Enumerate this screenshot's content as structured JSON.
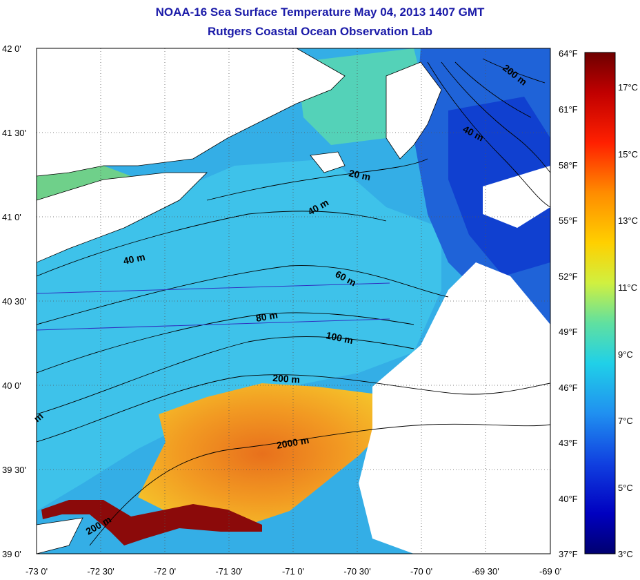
{
  "title": "NOAA-16 Sea Surface Temperature May 04, 2013 1407 GMT",
  "subtitle": "Rutgers Coastal Ocean Observation Lab",
  "lat_ticks": [
    "42 0'",
    "41 30'",
    "41 0'",
    "40 30'",
    "40 0'",
    "39 30'",
    "39 0'"
  ],
  "lon_ticks": [
    "-73 0'",
    "-72 30'",
    "-72 0'",
    "-71 30'",
    "-71 0'",
    "-70 30'",
    "-70 0'",
    "-69 30'",
    "-69 0'"
  ],
  "fahrenheit_ticks": [
    "64°F",
    "61°F",
    "58°F",
    "55°F",
    "52°F",
    "49°F",
    "46°F",
    "43°F",
    "40°F",
    "37°F"
  ],
  "celsius_ticks": [
    "17°C",
    "15°C",
    "13°C",
    "11°C",
    "9°C",
    "7°C",
    "5°C",
    "3°C"
  ],
  "depth_labels": [
    "200 m",
    "40 m",
    "20 m",
    "40 m",
    "40 m",
    "60 m",
    "80 m",
    "100 m",
    "200 m",
    "2000 m",
    "200 m",
    "m"
  ],
  "colors": {
    "title": "#1a1aa8",
    "cold": "#00008b",
    "cool": "#1e5fe0",
    "mid": "#2ab0e8",
    "mild": "#7ad67a",
    "warm": "#f0b020",
    "hot": "#e0501a",
    "very_hot": "#8b0000",
    "land": "#ffffff"
  }
}
